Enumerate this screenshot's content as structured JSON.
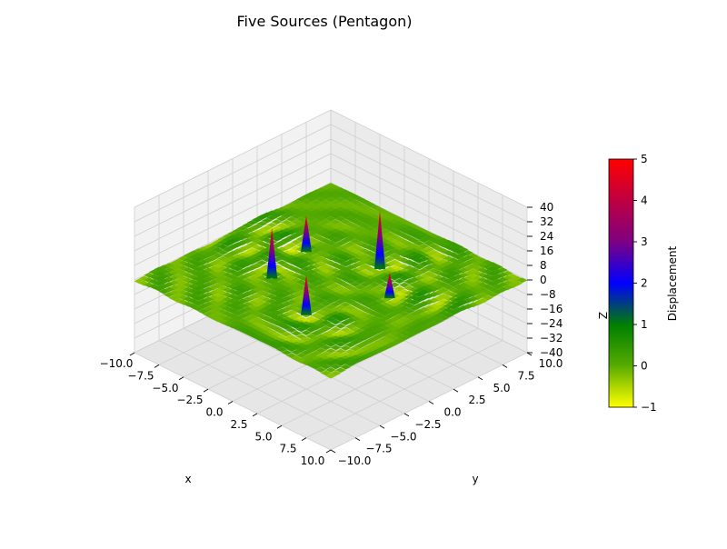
{
  "chart_data": {
    "type": "surface3d",
    "title": "Five Sources (Pentagon)",
    "xlabel": "x",
    "ylabel": "y",
    "zlabel": "Z",
    "xlim": [
      -10,
      10
    ],
    "ylim": [
      -10,
      10
    ],
    "zlim": [
      -40,
      40
    ],
    "x_ticks": [
      "−10.0",
      "−7.5",
      "−5.0",
      "−2.5",
      "0.0",
      "2.5",
      "5.0",
      "7.5",
      "10.0"
    ],
    "y_ticks": [
      "−10.0",
      "−7.5",
      "−5.0",
      "−2.5",
      "0.0",
      "2.5",
      "5.0",
      "7.5",
      "10.0"
    ],
    "z_ticks": [
      "−40",
      "−32",
      "−24",
      "−16",
      "−8",
      "0",
      "8",
      "16",
      "24",
      "32",
      "40"
    ],
    "grid": true,
    "sources": [
      {
        "x": -3.5,
        "y": -2.5,
        "peak": 26
      },
      {
        "x": 1.0,
        "y": 4.0,
        "peak": 30
      },
      {
        "x": 2.0,
        "y": -4.5,
        "peak": 20
      },
      {
        "x": -4.5,
        "y": 2.0,
        "peak": 18
      },
      {
        "x": 4.5,
        "y": 1.5,
        "peak": 12
      }
    ],
    "colorbar": {
      "label": "Displacement",
      "min": -1,
      "max": 5,
      "ticks": [
        "−1",
        "0",
        "1",
        "2",
        "3",
        "4",
        "5"
      ],
      "colormap": [
        "#ffff00",
        "#008000",
        "#0000ff",
        "#800080",
        "#ff0000"
      ]
    }
  }
}
